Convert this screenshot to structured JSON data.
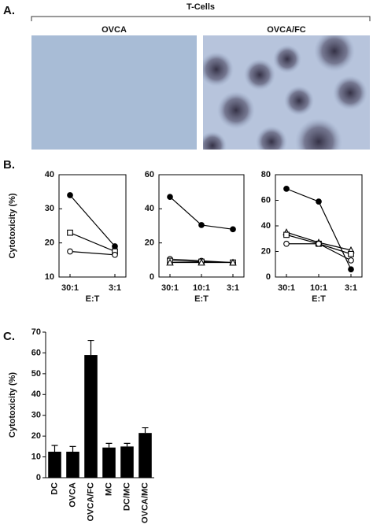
{
  "panel_labels": [
    "A.",
    "B.",
    "C."
  ],
  "panel_a": {
    "group_label": "T-Cells",
    "images": [
      "OVCA",
      "OVCA/FC"
    ]
  },
  "chart_data": [
    {
      "type": "line",
      "categories": [
        "30:1",
        "3:1"
      ],
      "ylim": [
        10,
        40
      ],
      "yticks": [
        10,
        20,
        30,
        40
      ],
      "ylabel": "Cytotoxicity (%)",
      "xlabel": "E:T",
      "series": [
        {
          "marker": "filled-circle",
          "color": "#000000",
          "values": [
            34,
            19
          ]
        },
        {
          "marker": "square",
          "color": "#000000",
          "values": [
            23,
            17.5
          ]
        },
        {
          "marker": "circle",
          "color": "#000000",
          "values": [
            17.5,
            16.5
          ]
        }
      ]
    },
    {
      "type": "line",
      "categories": [
        "30:1",
        "10:1",
        "3:1"
      ],
      "ylim": [
        0,
        60
      ],
      "yticks": [
        0,
        20,
        40,
        60
      ],
      "xlabel": "E:T",
      "series": [
        {
          "marker": "filled-circle",
          "color": "#000000",
          "values": [
            47,
            30.5,
            28
          ]
        },
        {
          "marker": "circle",
          "color": "#000000",
          "values": [
            10.5,
            9.5,
            8.5
          ]
        },
        {
          "marker": "square",
          "color": "#000000",
          "values": [
            9.5,
            9,
            8.5
          ]
        },
        {
          "marker": "triangle",
          "color": "#000000",
          "values": [
            8.5,
            8.5,
            8.5
          ]
        }
      ]
    },
    {
      "type": "line",
      "categories": [
        "30:1",
        "10:1",
        "3:1"
      ],
      "ylim": [
        0,
        80
      ],
      "yticks": [
        0,
        20,
        40,
        60,
        80
      ],
      "xlabel": "E:T",
      "series": [
        {
          "marker": "filled-circle",
          "color": "#000000",
          "values": [
            69,
            59,
            6
          ]
        },
        {
          "marker": "triangle",
          "color": "#000000",
          "values": [
            35,
            27,
            21
          ]
        },
        {
          "marker": "square",
          "color": "#000000",
          "values": [
            33,
            26,
            18
          ]
        },
        {
          "marker": "circle",
          "color": "#000000",
          "values": [
            26,
            26,
            13
          ]
        }
      ]
    },
    {
      "type": "bar",
      "categories": [
        "DC",
        "OVCA",
        "OVCA/FC",
        "MC",
        "DC/MC",
        "OVCA/MC"
      ],
      "values": [
        12.5,
        12.5,
        59,
        14.5,
        15,
        21.5
      ],
      "errors": [
        3,
        2.5,
        7,
        2,
        1.5,
        2.5
      ],
      "color": "#000000",
      "ylim": [
        0,
        70
      ],
      "yticks": [
        0,
        10,
        20,
        30,
        40,
        50,
        60,
        70
      ],
      "ylabel": "Cytotoxicity (%)"
    }
  ]
}
